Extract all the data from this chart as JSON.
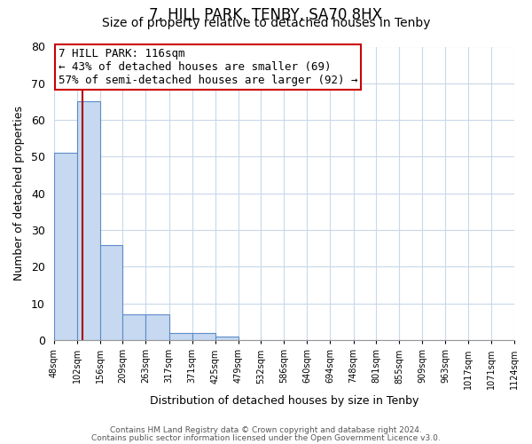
{
  "title": "7, HILL PARK, TENBY, SA70 8HX",
  "subtitle": "Size of property relative to detached houses in Tenby",
  "xlabel": "Distribution of detached houses by size in Tenby",
  "ylabel": "Number of detached properties",
  "bin_labels": [
    "48sqm",
    "102sqm",
    "156sqm",
    "209sqm",
    "263sqm",
    "317sqm",
    "371sqm",
    "425sqm",
    "479sqm",
    "532sqm",
    "586sqm",
    "640sqm",
    "694sqm",
    "748sqm",
    "801sqm",
    "855sqm",
    "909sqm",
    "963sqm",
    "1017sqm",
    "1071sqm",
    "1124sqm"
  ],
  "bin_edges": [
    48,
    102,
    156,
    209,
    263,
    317,
    371,
    425,
    479,
    532,
    586,
    640,
    694,
    748,
    801,
    855,
    909,
    963,
    1017,
    1071,
    1124
  ],
  "counts": [
    51,
    65,
    26,
    7,
    7,
    2,
    2,
    1,
    0,
    0,
    0,
    0,
    0,
    0,
    0,
    0,
    0,
    0,
    0,
    0
  ],
  "bar_color": "#c6d9f1",
  "bar_edge_color": "#5b8cc8",
  "grid_color": "#c8d8ea",
  "property_size": 116,
  "vline_color": "#aa0000",
  "annotation_line1": "7 HILL PARK: 116sqm",
  "annotation_line2": "← 43% of detached houses are smaller (69)",
  "annotation_line3": "57% of semi-detached houses are larger (92) →",
  "annotation_box_color": "#cc0000",
  "ylim": [
    0,
    80
  ],
  "yticks": [
    0,
    10,
    20,
    30,
    40,
    50,
    60,
    70,
    80
  ],
  "footer1": "Contains HM Land Registry data © Crown copyright and database right 2024.",
  "footer2": "Contains public sector information licensed under the Open Government Licence v3.0.",
  "bg_color": "#ffffff",
  "title_fontsize": 12,
  "subtitle_fontsize": 10,
  "annotation_fontsize": 9
}
